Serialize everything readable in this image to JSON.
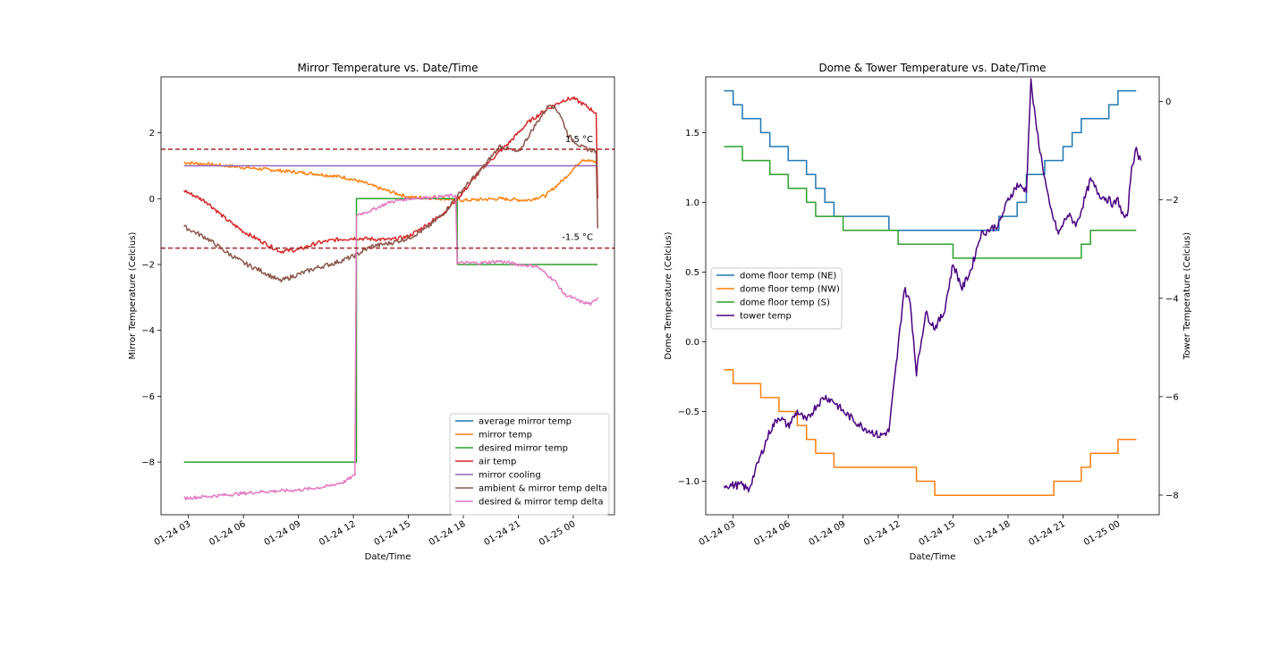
{
  "chart_data": [
    {
      "type": "line",
      "title": "Mirror Temperature vs. Date/Time",
      "xlabel": "Date/Time",
      "ylabel": "Mirror Temperature (Celcius)",
      "x_ticks": [
        "01-24 03",
        "01-24 06",
        "01-24 09",
        "01-24 12",
        "01-24 15",
        "01-24 18",
        "01-24 21",
        "01-25 00"
      ],
      "xlim": [
        "2024-01-24T01:30",
        "2024-01-25T02:15"
      ],
      "ylim": [
        -9.6,
        3.7
      ],
      "y_ticks": [
        2,
        0,
        -2,
        -4,
        -6,
        -8
      ],
      "legend_position": "lower right",
      "threshold_lines": [
        {
          "value": 1.5,
          "label": "1.5 °C",
          "color": "#a52a2a",
          "style": "dashed"
        },
        {
          "value": -1.5,
          "label": "-1.5 °C",
          "color": "#a52a2a",
          "style": "dashed"
        }
      ],
      "series": [
        {
          "name": "average mirror temp",
          "color": "#1f77b4",
          "points": []
        },
        {
          "name": "mirror temp",
          "color": "#ff7f0e",
          "noise": 0.05,
          "points": [
            [
              "2024-01-24T02:45",
              1.1
            ],
            [
              "2024-01-24T04:00",
              1.05
            ],
            [
              "2024-01-24T05:00",
              1.0
            ],
            [
              "2024-01-24T06:00",
              0.95
            ],
            [
              "2024-01-24T08:00",
              0.85
            ],
            [
              "2024-01-24T10:00",
              0.75
            ],
            [
              "2024-01-24T11:30",
              0.65
            ],
            [
              "2024-01-24T12:30",
              0.5
            ],
            [
              "2024-01-24T13:30",
              0.3
            ],
            [
              "2024-01-24T15:00",
              0.05
            ],
            [
              "2024-01-24T17:00",
              0.0
            ],
            [
              "2024-01-24T18:00",
              -0.05
            ],
            [
              "2024-01-24T20:00",
              0.0
            ],
            [
              "2024-01-24T21:30",
              -0.05
            ],
            [
              "2024-01-24T22:30",
              0.1
            ],
            [
              "2024-01-24T23:30",
              0.6
            ],
            [
              "2024-01-25T00:30",
              1.2
            ],
            [
              "2024-01-25T01:15",
              1.1
            ],
            [
              "2024-01-25T01:20",
              0.0
            ]
          ]
        },
        {
          "name": "desired mirror temp",
          "color": "#2ca02c",
          "points": [
            [
              "2024-01-24T02:45",
              -8.0
            ],
            [
              "2024-01-24T12:10",
              -8.0
            ],
            [
              "2024-01-24T12:10",
              0.0
            ],
            [
              "2024-01-24T17:40",
              0.0
            ],
            [
              "2024-01-24T17:40",
              -2.0
            ],
            [
              "2024-01-25T01:20",
              -2.0
            ]
          ]
        },
        {
          "name": "air temp",
          "color": "#d62728",
          "noise": 0.06,
          "points": [
            [
              "2024-01-24T02:45",
              0.25
            ],
            [
              "2024-01-24T04:00",
              -0.1
            ],
            [
              "2024-01-24T05:00",
              -0.6
            ],
            [
              "2024-01-24T06:00",
              -1.0
            ],
            [
              "2024-01-24T07:00",
              -1.3
            ],
            [
              "2024-01-24T08:00",
              -1.6
            ],
            [
              "2024-01-24T09:00",
              -1.55
            ],
            [
              "2024-01-24T10:00",
              -1.35
            ],
            [
              "2024-01-24T11:00",
              -1.25
            ],
            [
              "2024-01-24T12:00",
              -1.2
            ],
            [
              "2024-01-24T14:00",
              -1.25
            ],
            [
              "2024-01-24T15:00",
              -1.15
            ],
            [
              "2024-01-24T16:00",
              -0.8
            ],
            [
              "2024-01-24T17:00",
              -0.4
            ],
            [
              "2024-01-24T18:00",
              0.2
            ],
            [
              "2024-01-24T19:00",
              0.9
            ],
            [
              "2024-01-24T20:30",
              1.7
            ],
            [
              "2024-01-24T21:30",
              2.3
            ],
            [
              "2024-01-24T22:30",
              2.7
            ],
            [
              "2024-01-24T23:30",
              3.0
            ],
            [
              "2024-01-25T00:00",
              3.05
            ],
            [
              "2024-01-25T00:45",
              2.8
            ],
            [
              "2024-01-25T01:15",
              2.6
            ],
            [
              "2024-01-25T01:20",
              0.0
            ]
          ]
        },
        {
          "name": "mirror cooling",
          "color": "#9467bd",
          "points": [
            [
              "2024-01-24T02:45",
              1.0
            ],
            [
              "2024-01-25T01:20",
              1.0
            ]
          ]
        },
        {
          "name": "ambient & mirror temp delta",
          "color": "#8c564b",
          "noise": 0.07,
          "points": [
            [
              "2024-01-24T02:45",
              -0.85
            ],
            [
              "2024-01-24T04:00",
              -1.2
            ],
            [
              "2024-01-24T05:00",
              -1.6
            ],
            [
              "2024-01-24T06:00",
              -1.95
            ],
            [
              "2024-01-24T07:00",
              -2.2
            ],
            [
              "2024-01-24T08:00",
              -2.5
            ],
            [
              "2024-01-24T09:00",
              -2.3
            ],
            [
              "2024-01-24T10:00",
              -2.1
            ],
            [
              "2024-01-24T11:00",
              -1.95
            ],
            [
              "2024-01-24T12:00",
              -1.75
            ],
            [
              "2024-01-24T13:00",
              -1.45
            ],
            [
              "2024-01-24T14:00",
              -1.35
            ],
            [
              "2024-01-24T15:00",
              -1.2
            ],
            [
              "2024-01-24T16:00",
              -0.9
            ],
            [
              "2024-01-24T17:00",
              -0.4
            ],
            [
              "2024-01-24T18:00",
              0.3
            ],
            [
              "2024-01-24T19:00",
              0.9
            ],
            [
              "2024-01-24T20:00",
              1.6
            ],
            [
              "2024-01-24T21:00",
              1.4
            ],
            [
              "2024-01-24T22:00",
              2.3
            ],
            [
              "2024-01-24T22:45",
              2.9
            ],
            [
              "2024-01-24T23:15",
              2.6
            ],
            [
              "2024-01-24T23:45",
              1.9
            ],
            [
              "2024-01-25T00:30",
              1.55
            ],
            [
              "2024-01-25T01:15",
              1.45
            ],
            [
              "2024-01-25T01:20",
              -0.9
            ]
          ]
        },
        {
          "name": "desired & mirror temp delta",
          "color": "#e377c2",
          "noise": 0.05,
          "points": [
            [
              "2024-01-24T02:45",
              -9.1
            ],
            [
              "2024-01-24T05:00",
              -9.0
            ],
            [
              "2024-01-24T07:00",
              -8.9
            ],
            [
              "2024-01-24T09:00",
              -8.85
            ],
            [
              "2024-01-24T10:30",
              -8.75
            ],
            [
              "2024-01-24T11:30",
              -8.6
            ],
            [
              "2024-01-24T12:05",
              -8.4
            ],
            [
              "2024-01-24T12:10",
              -0.5
            ],
            [
              "2024-01-24T13:00",
              -0.35
            ],
            [
              "2024-01-24T14:00",
              -0.1
            ],
            [
              "2024-01-24T15:00",
              0.0
            ],
            [
              "2024-01-24T16:30",
              0.05
            ],
            [
              "2024-01-24T17:35",
              0.1
            ],
            [
              "2024-01-24T17:40",
              -1.95
            ],
            [
              "2024-01-24T19:00",
              -1.95
            ],
            [
              "2024-01-24T20:00",
              -1.9
            ],
            [
              "2024-01-24T21:00",
              -2.0
            ],
            [
              "2024-01-24T22:00",
              -2.05
            ],
            [
              "2024-01-24T23:00",
              -2.5
            ],
            [
              "2024-01-24T23:30",
              -2.9
            ],
            [
              "2024-01-25T00:30",
              -3.15
            ],
            [
              "2024-01-25T01:00",
              -3.2
            ],
            [
              "2024-01-25T01:20",
              -3.0
            ]
          ]
        }
      ]
    },
    {
      "type": "line",
      "title": "Dome & Tower Temperature vs. Date/Time",
      "xlabel": "Date/Time",
      "ylabel": "Dome Temperature (Celcius)",
      "y2label": "Tower Temperature (Celcius)",
      "x_ticks": [
        "01-24 03",
        "01-24 06",
        "01-24 09",
        "01-24 12",
        "01-24 15",
        "01-24 18",
        "01-24 21",
        "01-25 00"
      ],
      "xlim": [
        "2024-01-24T01:30",
        "2024-01-25T02:15"
      ],
      "ylim": [
        -1.24,
        1.9
      ],
      "y_ticks": [
        1.5,
        1.0,
        0.5,
        0.0,
        -0.5,
        -1.0
      ],
      "y2lim": [
        -8.4,
        0.5
      ],
      "y2_ticks": [
        0,
        -2,
        -4,
        -6,
        -8
      ],
      "legend_position": "center left",
      "series": [
        {
          "name": "dome floor temp (NE)",
          "color": "#1f77b4",
          "axis": "left",
          "points": [
            [
              "2024-01-24T02:30",
              1.8
            ],
            [
              "2024-01-24T03:00",
              1.7
            ],
            [
              "2024-01-24T03:30",
              1.6
            ],
            [
              "2024-01-24T04:30",
              1.5
            ],
            [
              "2024-01-24T05:00",
              1.4
            ],
            [
              "2024-01-24T06:00",
              1.3
            ],
            [
              "2024-01-24T07:00",
              1.2
            ],
            [
              "2024-01-24T07:30",
              1.1
            ],
            [
              "2024-01-24T08:00",
              1.0
            ],
            [
              "2024-01-24T08:30",
              0.9
            ],
            [
              "2024-01-24T11:30",
              0.8
            ],
            [
              "2024-01-24T16:00",
              0.8
            ],
            [
              "2024-01-24T17:30",
              0.9
            ],
            [
              "2024-01-24T18:30",
              1.0
            ],
            [
              "2024-01-24T19:00",
              1.2
            ],
            [
              "2024-01-24T20:00",
              1.3
            ],
            [
              "2024-01-24T21:00",
              1.4
            ],
            [
              "2024-01-24T21:30",
              1.5
            ],
            [
              "2024-01-24T22:00",
              1.6
            ],
            [
              "2024-01-24T23:30",
              1.7
            ],
            [
              "2024-01-25T00:00",
              1.8
            ],
            [
              "2024-01-25T01:00",
              1.8
            ]
          ]
        },
        {
          "name": "dome floor temp (NW)",
          "color": "#ff7f0e",
          "axis": "left",
          "points": [
            [
              "2024-01-24T02:30",
              -0.2
            ],
            [
              "2024-01-24T03:00",
              -0.3
            ],
            [
              "2024-01-24T04:30",
              -0.4
            ],
            [
              "2024-01-24T05:30",
              -0.5
            ],
            [
              "2024-01-24T06:30",
              -0.6
            ],
            [
              "2024-01-24T07:00",
              -0.7
            ],
            [
              "2024-01-24T07:30",
              -0.8
            ],
            [
              "2024-01-24T08:30",
              -0.9
            ],
            [
              "2024-01-24T13:00",
              -1.0
            ],
            [
              "2024-01-24T14:00",
              -1.1
            ],
            [
              "2024-01-24T20:00",
              -1.1
            ],
            [
              "2024-01-24T20:30",
              -1.0
            ],
            [
              "2024-01-24T22:00",
              -0.9
            ],
            [
              "2024-01-24T22:30",
              -0.8
            ],
            [
              "2024-01-25T00:00",
              -0.7
            ],
            [
              "2024-01-25T01:00",
              -0.7
            ]
          ]
        },
        {
          "name": "dome floor temp (S)",
          "color": "#2ca02c",
          "axis": "left",
          "points": [
            [
              "2024-01-24T02:30",
              1.4
            ],
            [
              "2024-01-24T03:30",
              1.3
            ],
            [
              "2024-01-24T05:00",
              1.2
            ],
            [
              "2024-01-24T06:00",
              1.1
            ],
            [
              "2024-01-24T07:00",
              1.0
            ],
            [
              "2024-01-24T07:30",
              0.9
            ],
            [
              "2024-01-24T09:00",
              0.8
            ],
            [
              "2024-01-24T12:00",
              0.7
            ],
            [
              "2024-01-24T15:00",
              0.6
            ],
            [
              "2024-01-24T21:00",
              0.6
            ],
            [
              "2024-01-24T22:00",
              0.7
            ],
            [
              "2024-01-24T22:30",
              0.8
            ],
            [
              "2024-01-25T01:00",
              0.8
            ]
          ]
        },
        {
          "name": "tower temp",
          "color": "#4b0082",
          "axis": "right",
          "noise": 0.08,
          "points": [
            [
              "2024-01-24T02:30",
              -7.8
            ],
            [
              "2024-01-24T03:30",
              -7.8
            ],
            [
              "2024-01-24T03:50",
              -7.9
            ],
            [
              "2024-01-24T04:30",
              -7.2
            ],
            [
              "2024-01-24T05:00",
              -6.7
            ],
            [
              "2024-01-24T05:30",
              -6.4
            ],
            [
              "2024-01-24T06:00",
              -6.6
            ],
            [
              "2024-01-24T06:30",
              -6.3
            ],
            [
              "2024-01-24T07:00",
              -6.5
            ],
            [
              "2024-01-24T07:30",
              -6.2
            ],
            [
              "2024-01-24T08:00",
              -6.0
            ],
            [
              "2024-01-24T08:30",
              -6.1
            ],
            [
              "2024-01-24T09:00",
              -6.3
            ],
            [
              "2024-01-24T10:00",
              -6.6
            ],
            [
              "2024-01-24T11:00",
              -6.8
            ],
            [
              "2024-01-24T11:30",
              -6.7
            ],
            [
              "2024-01-24T12:00",
              -5.0
            ],
            [
              "2024-01-24T12:20",
              -3.8
            ],
            [
              "2024-01-24T12:40",
              -4.1
            ],
            [
              "2024-01-24T13:00",
              -5.5
            ],
            [
              "2024-01-24T13:30",
              -4.3
            ],
            [
              "2024-01-24T14:00",
              -4.6
            ],
            [
              "2024-01-24T14:30",
              -4.3
            ],
            [
              "2024-01-24T15:00",
              -3.3
            ],
            [
              "2024-01-24T15:30",
              -3.8
            ],
            [
              "2024-01-24T16:00",
              -3.4
            ],
            [
              "2024-01-24T16:30",
              -2.7
            ],
            [
              "2024-01-24T17:30",
              -2.5
            ],
            [
              "2024-01-24T18:00",
              -2.0
            ],
            [
              "2024-01-24T18:30",
              -1.7
            ],
            [
              "2024-01-24T19:00",
              -1.8
            ],
            [
              "2024-01-24T19:15",
              0.4
            ],
            [
              "2024-01-24T19:30",
              -0.4
            ],
            [
              "2024-01-24T19:45",
              -1.0
            ],
            [
              "2024-01-24T20:15",
              -2.1
            ],
            [
              "2024-01-24T20:45",
              -2.7
            ],
            [
              "2024-01-24T21:15",
              -2.3
            ],
            [
              "2024-01-24T21:45",
              -2.5
            ],
            [
              "2024-01-24T22:30",
              -1.6
            ],
            [
              "2024-01-24T23:00",
              -1.9
            ],
            [
              "2024-01-24T23:30",
              -2.0
            ],
            [
              "2024-01-24T23:45",
              -2.1
            ],
            [
              "2024-01-25T00:00",
              -2.0
            ],
            [
              "2024-01-25T00:15",
              -2.3
            ],
            [
              "2024-01-25T00:30",
              -2.4
            ],
            [
              "2024-01-25T00:45",
              -1.3
            ],
            [
              "2024-01-25T01:00",
              -1.0
            ],
            [
              "2024-01-25T01:15",
              -1.2
            ]
          ]
        }
      ]
    }
  ]
}
